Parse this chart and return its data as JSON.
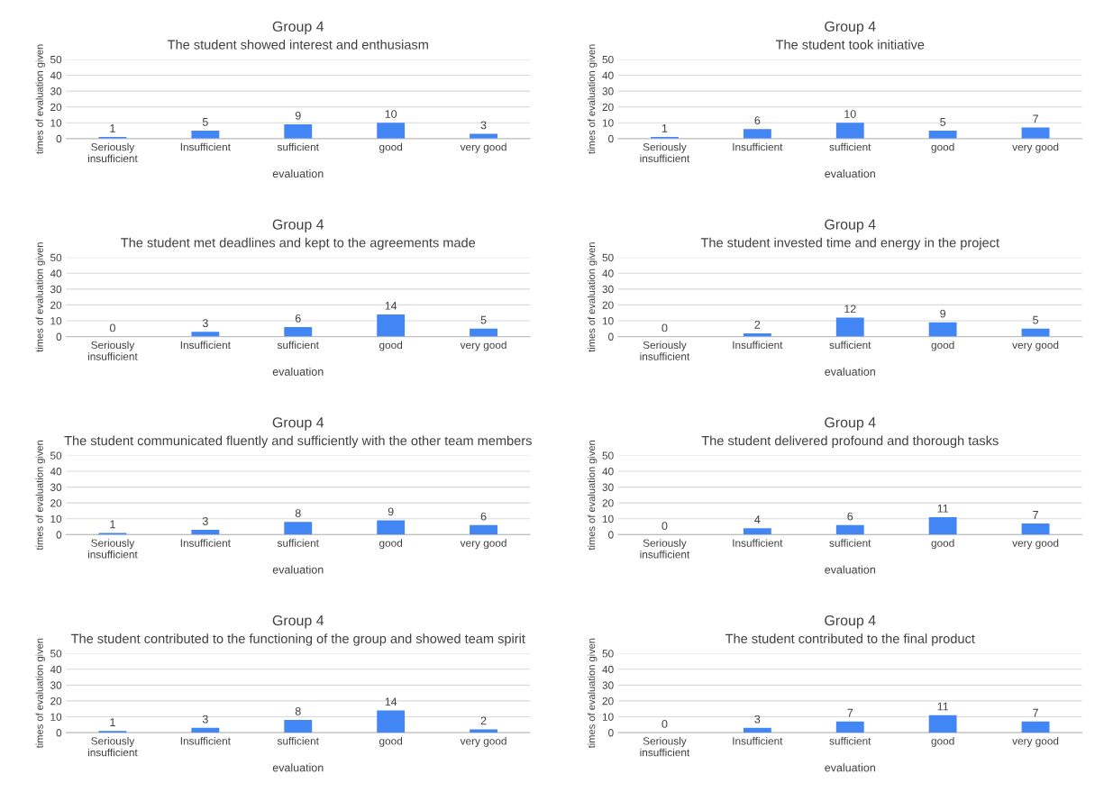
{
  "chart_data": [
    {
      "type": "bar",
      "title": "Group 4",
      "subtitle": "The student showed interest and enthusiasm",
      "xlabel": "evaluation",
      "ylabel": "times of evaluation given",
      "categories": [
        "Seriously insufficient",
        "Insufficient",
        "sufficient",
        "good",
        "very good"
      ],
      "values": [
        1,
        5,
        9,
        10,
        3
      ],
      "color": "#4285f4",
      "ylim": [
        0,
        50
      ],
      "yticks": [
        0,
        10,
        20,
        30,
        40,
        50
      ],
      "grid": "y",
      "data_labels": true
    },
    {
      "type": "bar",
      "title": "Group 4",
      "subtitle": "The student took initiative",
      "xlabel": "evaluation",
      "ylabel": "times of evaluation given",
      "categories": [
        "Seriously insufficient",
        "Insufficient",
        "sufficient",
        "good",
        "very good"
      ],
      "values": [
        1,
        6,
        10,
        5,
        7
      ],
      "color": "#4285f4",
      "ylim": [
        0,
        50
      ],
      "yticks": [
        0,
        10,
        20,
        30,
        40,
        50
      ],
      "grid": "y",
      "data_labels": true
    },
    {
      "type": "bar",
      "title": "Group 4",
      "subtitle": "The student met deadlines and kept to the agreements made",
      "xlabel": "evaluation",
      "ylabel": "times of evaluation given",
      "categories": [
        "Seriously insufficient",
        "Insufficient",
        "sufficient",
        "good",
        "very good"
      ],
      "values": [
        0,
        3,
        6,
        14,
        5
      ],
      "color": "#4285f4",
      "ylim": [
        0,
        50
      ],
      "yticks": [
        0,
        10,
        20,
        30,
        40,
        50
      ],
      "grid": "y",
      "data_labels": true
    },
    {
      "type": "bar",
      "title": "Group 4",
      "subtitle": "The student invested time and energy in the project",
      "xlabel": "evaluation",
      "ylabel": "times of evaluation given",
      "categories": [
        "Seriously insufficient",
        "Insufficient",
        "sufficient",
        "good",
        "very good"
      ],
      "values": [
        0,
        2,
        12,
        9,
        5
      ],
      "color": "#4285f4",
      "ylim": [
        0,
        50
      ],
      "yticks": [
        0,
        10,
        20,
        30,
        40,
        50
      ],
      "grid": "y",
      "data_labels": true
    },
    {
      "type": "bar",
      "title": "Group 4",
      "subtitle": "The student communicated fluently and sufficiently with the other team members",
      "xlabel": "evaluation",
      "ylabel": "times of evaluation given",
      "categories": [
        "Seriously insufficient",
        "Insufficient",
        "sufficient",
        "good",
        "very good"
      ],
      "values": [
        1,
        3,
        8,
        9,
        6
      ],
      "color": "#4285f4",
      "ylim": [
        0,
        50
      ],
      "yticks": [
        0,
        10,
        20,
        30,
        40,
        50
      ],
      "grid": "y",
      "data_labels": true
    },
    {
      "type": "bar",
      "title": "Group 4",
      "subtitle": "The student delivered profound and thorough tasks",
      "xlabel": "evaluation",
      "ylabel": "times of evaluation given",
      "categories": [
        "Seriously insufficient",
        "Insufficient",
        "sufficient",
        "good",
        "very good"
      ],
      "values": [
        0,
        4,
        6,
        11,
        7
      ],
      "color": "#4285f4",
      "ylim": [
        0,
        50
      ],
      "yticks": [
        0,
        10,
        20,
        30,
        40,
        50
      ],
      "grid": "y",
      "data_labels": true
    },
    {
      "type": "bar",
      "title": "Group 4",
      "subtitle": "The student contributed to the functioning of the group and showed team spirit",
      "xlabel": "evaluation",
      "ylabel": "times of evaluation given",
      "categories": [
        "Seriously insufficient",
        "Insufficient",
        "sufficient",
        "good",
        "very good"
      ],
      "values": [
        1,
        3,
        8,
        14,
        2
      ],
      "color": "#4285f4",
      "ylim": [
        0,
        50
      ],
      "yticks": [
        0,
        10,
        20,
        30,
        40,
        50
      ],
      "grid": "y",
      "data_labels": true
    },
    {
      "type": "bar",
      "title": "Group 4",
      "subtitle": "The student contributed to the final product",
      "xlabel": "evaluation",
      "ylabel": "times of evaluation given",
      "categories": [
        "Seriously insufficient",
        "Insufficient",
        "sufficient",
        "good",
        "very good"
      ],
      "values": [
        0,
        3,
        7,
        11,
        7
      ],
      "color": "#4285f4",
      "ylim": [
        0,
        50
      ],
      "yticks": [
        0,
        10,
        20,
        30,
        40,
        50
      ],
      "grid": "y",
      "data_labels": true
    }
  ]
}
